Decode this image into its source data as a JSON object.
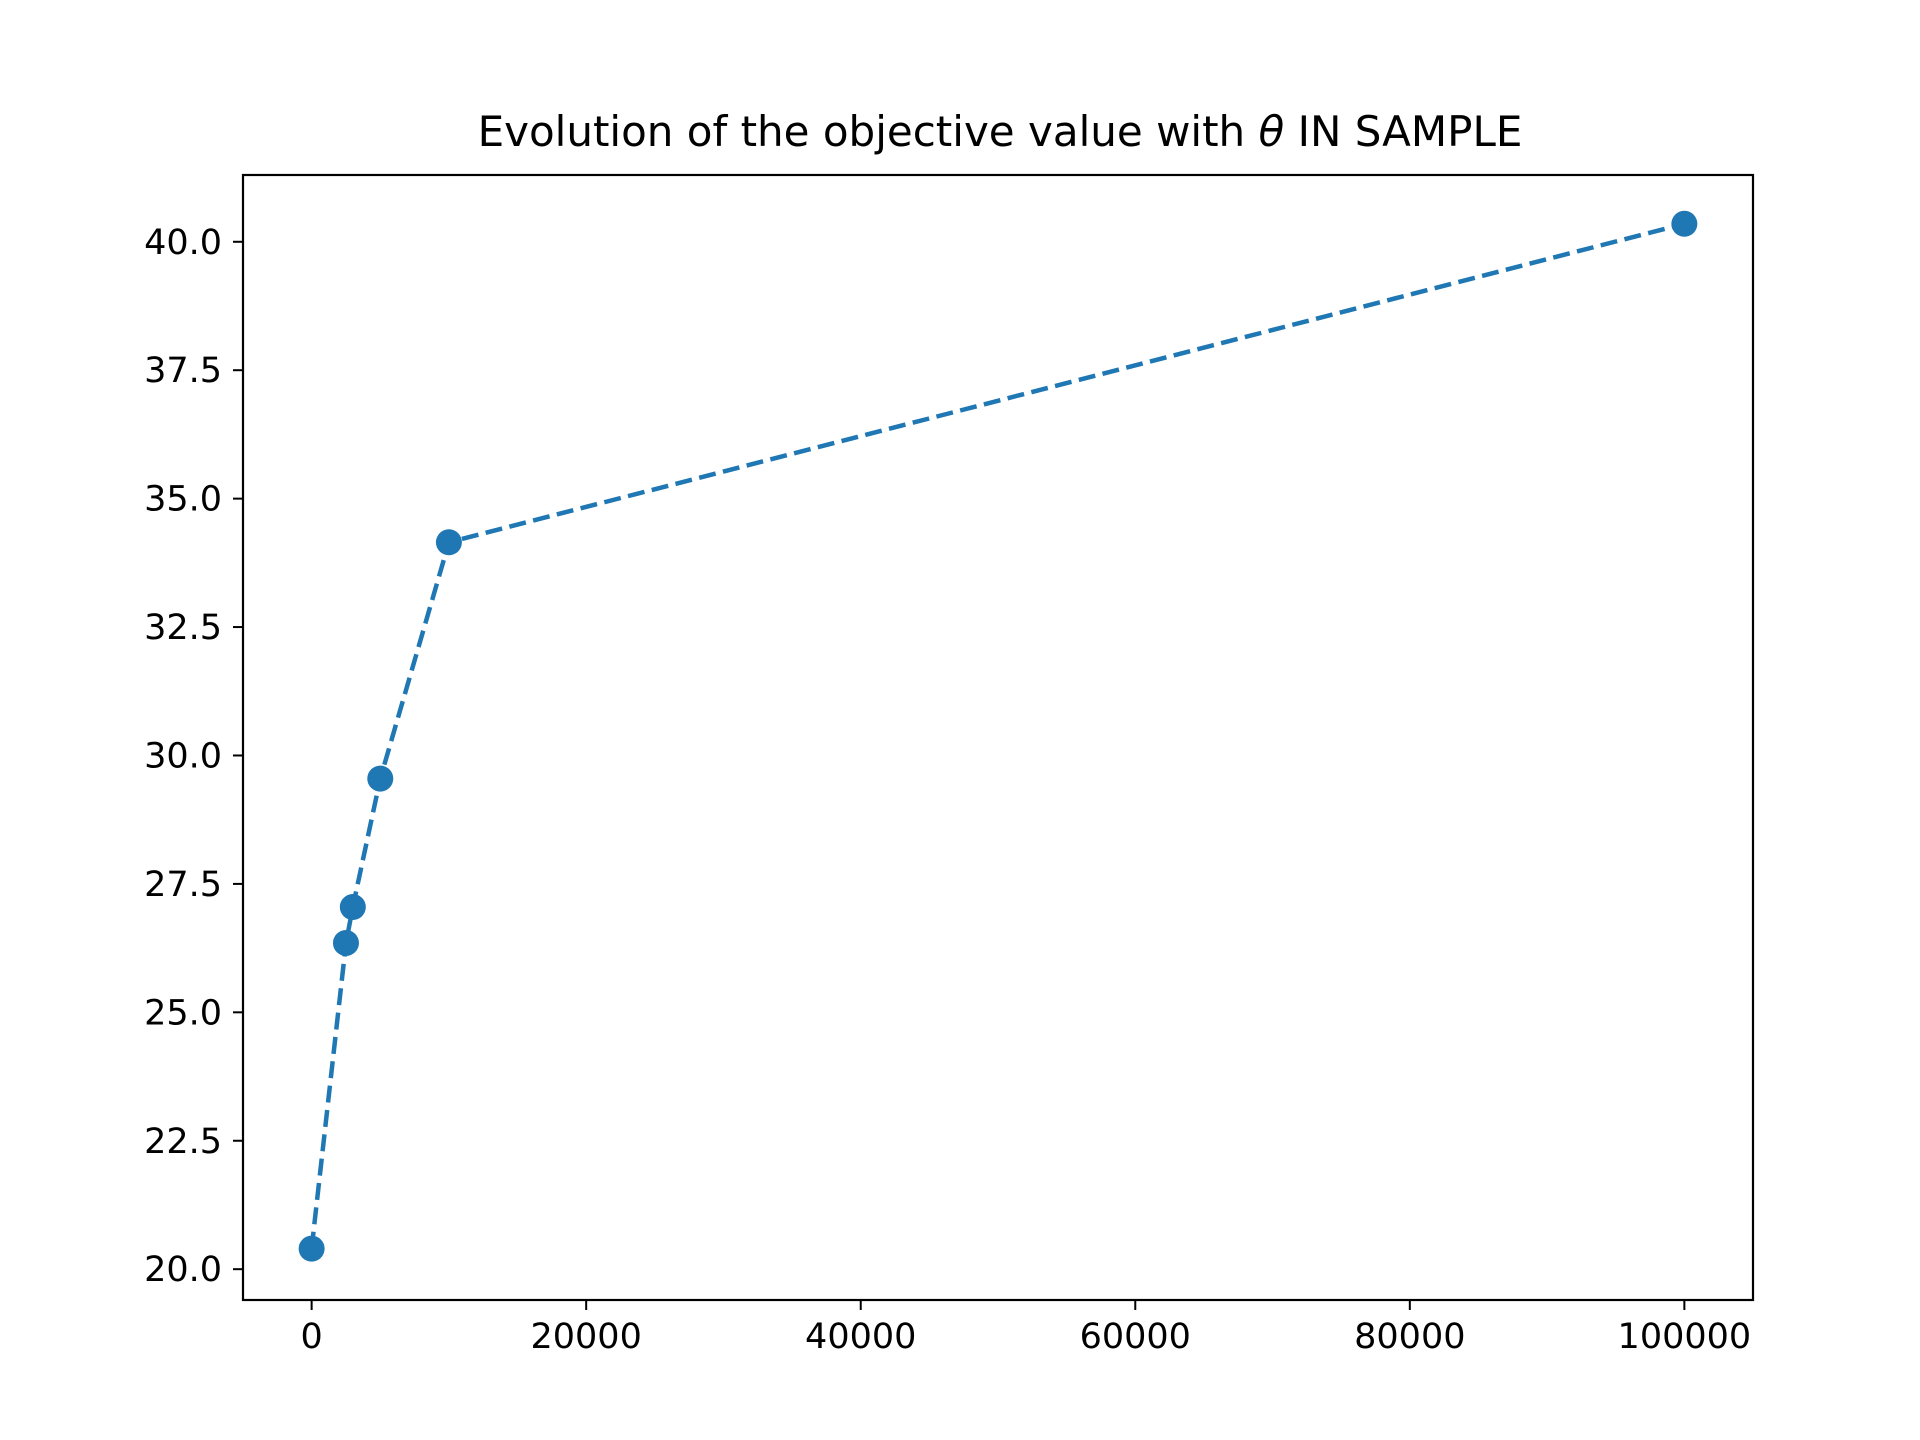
{
  "chart_data": {
    "type": "line",
    "title_prefix": "Evolution of the objective value with ",
    "title_symbol": "θ",
    "title_suffix": " IN SAMPLE",
    "xlabel": "",
    "ylabel": "",
    "xlim": [
      -5000,
      105000
    ],
    "ylim": [
      19.4,
      41.3
    ],
    "x_ticks": [
      0,
      20000,
      40000,
      60000,
      80000,
      100000
    ],
    "x_tick_labels": [
      "0",
      "20000",
      "40000",
      "60000",
      "80000",
      "100000"
    ],
    "y_ticks": [
      20.0,
      22.5,
      25.0,
      27.5,
      30.0,
      32.5,
      35.0,
      37.5,
      40.0
    ],
    "y_tick_labels": [
      "20.0",
      "22.5",
      "25.0",
      "27.5",
      "30.0",
      "32.5",
      "35.0",
      "37.5",
      "40.0"
    ],
    "grid": false,
    "line_style": "dashed",
    "marker": "circle",
    "series": [
      {
        "color": "#1f77b4",
        "x": [
          0,
          2500,
          3000,
          5000,
          10000,
          100000
        ],
        "y": [
          20.4,
          26.35,
          27.05,
          29.55,
          34.15,
          40.35
        ]
      }
    ]
  }
}
